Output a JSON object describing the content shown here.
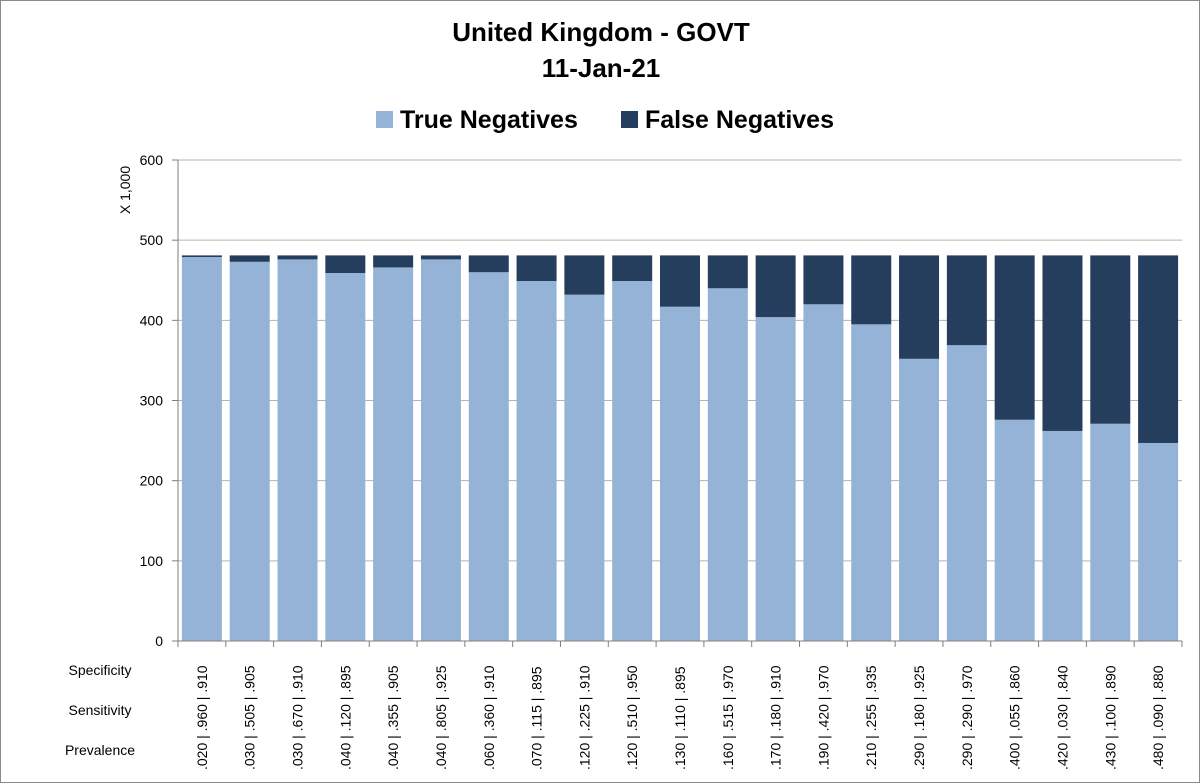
{
  "chart_data": {
    "type": "bar",
    "stacked": true,
    "title": "United Kingdom - GOVT",
    "subtitle": "11-Jan-21",
    "ylabel": "X 1,000",
    "ylim": [
      0,
      600
    ],
    "yticks": [
      0,
      100,
      200,
      300,
      400,
      500,
      600
    ],
    "row_labels": [
      "Specificity",
      "Sensitivity",
      "Prevalence"
    ],
    "categories": [
      ".020 | .960 | .910",
      ".030 | .505 | .905",
      ".030 | .670 | .910",
      ".040 | .120 | .895",
      ".040 | .355 | .905",
      ".040 | .805 | .925",
      ".060 | .360 | .910",
      ".070 | .115 | .895",
      ".120 | .225 | .910",
      ".120 | .510 | .950",
      ".130 | .110 | .895",
      ".160 | .515 | .970",
      ".170 | .180 | .910",
      ".190 | .420 | .970",
      ".210 | .255 | .935",
      ".290 | .180 | .925",
      ".290 | .290 | .970",
      ".400 | .055 | .860",
      ".420 | .030 | .840",
      ".430 | .100 | .890",
      ".480 | .090 | .880"
    ],
    "series": [
      {
        "name": "True Negatives",
        "color": "#95b3d7",
        "values": [
          479,
          473,
          476,
          459,
          466,
          476,
          460,
          449,
          432,
          449,
          417,
          440,
          404,
          420,
          395,
          352,
          369,
          276,
          262,
          271,
          247
        ]
      },
      {
        "name": "False Negatives",
        "color": "#253e5e",
        "values": [
          2,
          8,
          5,
          22,
          15,
          5,
          21,
          32,
          49,
          32,
          64,
          41,
          77,
          61,
          86,
          129,
          112,
          205,
          219,
          210,
          234
        ]
      }
    ]
  }
}
